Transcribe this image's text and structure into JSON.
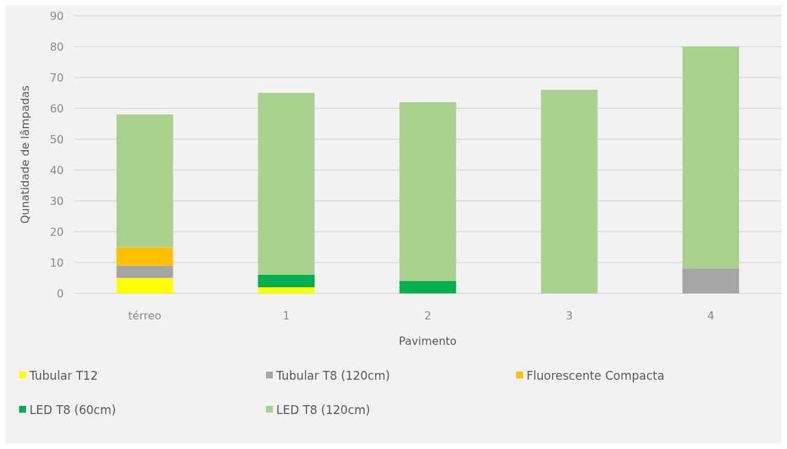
{
  "chart_data": {
    "type": "bar",
    "stacked": true,
    "xlabel": "Pavimento",
    "ylabel": "Qunatidade de lâmpadas",
    "categories": [
      "térreo",
      "1",
      "2",
      "3",
      "4"
    ],
    "series": [
      {
        "name": "Tubular T12",
        "color": "#ffff00",
        "values": [
          5,
          2,
          0,
          0,
          0
        ]
      },
      {
        "name": "Tubular T8 (120cm)",
        "color": "#a5a5a5",
        "values": [
          4,
          0,
          0,
          0,
          8
        ]
      },
      {
        "name": "Fluorescente Compacta",
        "color": "#ffc000",
        "values": [
          6,
          0,
          0,
          0,
          0
        ]
      },
      {
        "name": "LED T8 (60cm)",
        "color": "#00b050",
        "values": [
          0,
          4,
          4,
          0,
          0
        ]
      },
      {
        "name": "LED T8 (120cm)",
        "color": "#a9d18e",
        "values": [
          43,
          59,
          58,
          66,
          72
        ]
      }
    ],
    "ylim": [
      0,
      90
    ],
    "yticks": [
      0,
      10,
      20,
      30,
      40,
      50,
      60,
      70,
      80,
      90
    ],
    "grid": "y",
    "legend": "bottom"
  }
}
